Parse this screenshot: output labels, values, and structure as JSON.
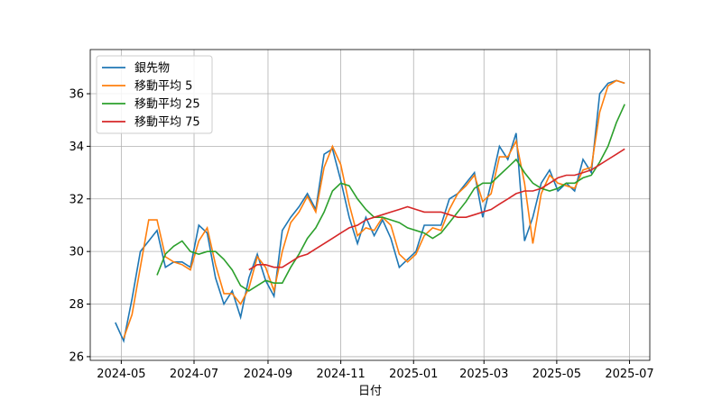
{
  "chart_data": {
    "type": "line",
    "xlabel": "日付",
    "x": [
      "2024-04-26",
      "2024-05-03",
      "2024-05-10",
      "2024-05-17",
      "2024-05-24",
      "2024-05-31",
      "2024-06-07",
      "2024-06-14",
      "2024-06-21",
      "2024-06-28",
      "2024-07-05",
      "2024-07-12",
      "2024-07-19",
      "2024-07-26",
      "2024-08-02",
      "2024-08-09",
      "2024-08-16",
      "2024-08-23",
      "2024-08-30",
      "2024-09-06",
      "2024-09-13",
      "2024-09-20",
      "2024-09-27",
      "2024-10-04",
      "2024-10-11",
      "2024-10-18",
      "2024-10-25",
      "2024-11-01",
      "2024-11-08",
      "2024-11-15",
      "2024-11-22",
      "2024-11-29",
      "2024-12-06",
      "2024-12-13",
      "2024-12-20",
      "2024-12-27",
      "2025-01-03",
      "2025-01-10",
      "2025-01-17",
      "2025-01-24",
      "2025-01-31",
      "2025-02-07",
      "2025-02-14",
      "2025-02-21",
      "2025-02-28",
      "2025-03-07",
      "2025-03-14",
      "2025-03-21",
      "2025-03-28",
      "2025-04-04",
      "2025-04-11",
      "2025-04-18",
      "2025-04-25",
      "2025-05-02",
      "2025-05-09",
      "2025-05-16",
      "2025-05-23",
      "2025-05-30",
      "2025-06-06",
      "2025-06-13",
      "2025-06-20",
      "2025-06-27"
    ],
    "series": [
      {
        "name": "銀先物",
        "color": "#1f77b4",
        "values": [
          27.3,
          26.6,
          28.2,
          30.0,
          30.4,
          30.8,
          29.4,
          29.6,
          29.6,
          29.4,
          31.0,
          30.7,
          29.0,
          28.0,
          28.5,
          27.5,
          29.0,
          29.9,
          28.9,
          28.3,
          30.8,
          31.3,
          31.7,
          32.2,
          31.6,
          33.7,
          33.9,
          32.7,
          31.3,
          30.3,
          31.3,
          30.6,
          31.2,
          30.5,
          29.4,
          29.7,
          30.0,
          31.0,
          31.0,
          31.0,
          32.0,
          32.2,
          32.6,
          33.0,
          31.3,
          32.6,
          34.0,
          33.5,
          34.5,
          30.4,
          31.3,
          32.6,
          33.1,
          32.3,
          32.6,
          32.3,
          33.5,
          33.0,
          36.0,
          36.4,
          36.5,
          36.4
        ]
      },
      {
        "name": "移動平均 5",
        "color": "#ff7f0e",
        "values": [
          null,
          26.7,
          27.6,
          29.4,
          31.2,
          31.2,
          29.8,
          29.6,
          29.5,
          29.3,
          30.4,
          30.9,
          29.5,
          28.4,
          28.4,
          28.0,
          28.6,
          29.8,
          29.4,
          28.5,
          30.0,
          31.1,
          31.5,
          32.1,
          31.5,
          33.2,
          34.0,
          33.3,
          31.8,
          30.6,
          30.9,
          30.8,
          31.3,
          31.0,
          29.9,
          29.6,
          29.9,
          30.6,
          30.9,
          30.8,
          31.6,
          32.2,
          32.5,
          32.9,
          31.9,
          32.2,
          33.6,
          33.6,
          34.2,
          32.6,
          30.3,
          32.2,
          32.9,
          32.6,
          32.5,
          32.4,
          33.1,
          33.2,
          35.3,
          36.3,
          36.5,
          36.4
        ]
      },
      {
        "name": "移動平均 25",
        "color": "#2ca02c",
        "values": [
          null,
          null,
          null,
          null,
          null,
          29.1,
          29.9,
          30.2,
          30.4,
          30.0,
          29.9,
          30.0,
          30.0,
          29.7,
          29.3,
          28.7,
          28.5,
          28.7,
          28.9,
          28.8,
          28.8,
          29.4,
          29.9,
          30.5,
          30.9,
          31.5,
          32.3,
          32.6,
          32.5,
          32.0,
          31.6,
          31.3,
          31.3,
          31.2,
          31.1,
          30.9,
          30.8,
          30.7,
          30.5,
          30.7,
          31.1,
          31.5,
          31.9,
          32.4,
          32.6,
          32.6,
          32.9,
          33.2,
          33.5,
          33.0,
          32.6,
          32.4,
          32.3,
          32.4,
          32.6,
          32.6,
          32.8,
          32.9,
          33.4,
          34.0,
          34.9,
          35.6
        ]
      },
      {
        "name": "移動平均 75",
        "color": "#d62728",
        "values": [
          null,
          null,
          null,
          null,
          null,
          null,
          null,
          null,
          null,
          null,
          null,
          null,
          null,
          null,
          null,
          null,
          29.3,
          29.5,
          29.5,
          29.4,
          29.4,
          29.6,
          29.8,
          29.9,
          30.1,
          30.3,
          30.5,
          30.7,
          30.9,
          31.0,
          31.2,
          31.3,
          31.4,
          31.5,
          31.6,
          31.7,
          31.6,
          31.5,
          31.5,
          31.5,
          31.4,
          31.3,
          31.3,
          31.4,
          31.5,
          31.6,
          31.8,
          32.0,
          32.2,
          32.3,
          32.3,
          32.4,
          32.6,
          32.8,
          32.9,
          32.9,
          33.0,
          33.1,
          33.3,
          33.5,
          33.7,
          33.9
        ]
      }
    ],
    "xlim": [
      "2024-04-05",
      "2025-07-18"
    ],
    "xticks": [
      {
        "value": "2024-05-01",
        "label": "2024-05"
      },
      {
        "value": "2024-07-01",
        "label": "2024-07"
      },
      {
        "value": "2024-09-01",
        "label": "2024-09"
      },
      {
        "value": "2024-11-01",
        "label": "2024-11"
      },
      {
        "value": "2025-01-01",
        "label": "2025-01"
      },
      {
        "value": "2025-03-01",
        "label": "2025-03"
      },
      {
        "value": "2025-05-01",
        "label": "2025-05"
      },
      {
        "value": "2025-07-01",
        "label": "2025-07"
      }
    ],
    "ylim": [
      25.86,
      37.68
    ],
    "yticks": [
      26,
      28,
      30,
      32,
      34,
      36
    ],
    "grid": true,
    "legend": "upper left"
  }
}
